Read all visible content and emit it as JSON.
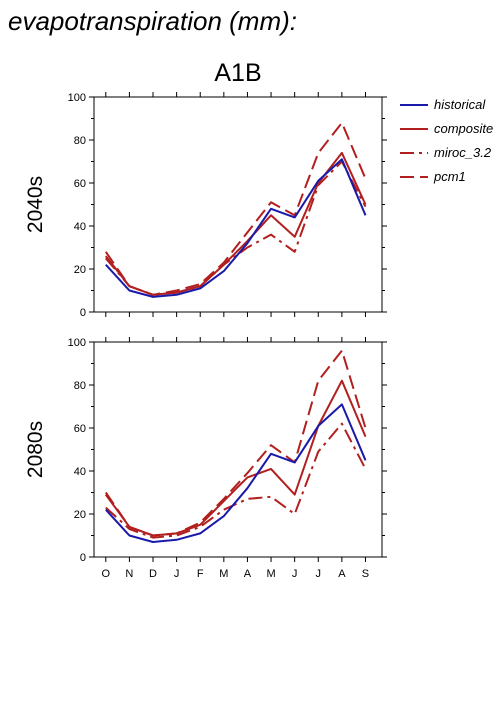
{
  "title": "evapotranspiration (mm):",
  "scenario": "A1B",
  "colors": {
    "historical": "#1a1aaa",
    "model": "#b21f1f"
  },
  "chart_data": [
    {
      "type": "line",
      "panel_label": "2040s",
      "categories": [
        "O",
        "N",
        "D",
        "J",
        "F",
        "M",
        "A",
        "M",
        "J",
        "J",
        "A",
        "S"
      ],
      "ylim": [
        0,
        100
      ],
      "yticks": [
        0,
        20,
        40,
        60,
        80,
        100
      ],
      "series": [
        {
          "name": "historical",
          "values": [
            22,
            10,
            7,
            8,
            11,
            19,
            32,
            48,
            44,
            61,
            71,
            45
          ]
        },
        {
          "name": "composite",
          "values": [
            26,
            12,
            8,
            9,
            12,
            22,
            33,
            45,
            35,
            60,
            74,
            50
          ]
        },
        {
          "name": "miroc_3.2",
          "values": [
            25,
            12,
            8,
            9,
            12,
            22,
            30,
            36,
            28,
            59,
            70,
            49
          ]
        },
        {
          "name": "pcm1",
          "values": [
            28,
            12,
            8,
            10,
            13,
            23,
            37,
            51,
            45,
            74,
            88,
            62
          ]
        }
      ]
    },
    {
      "type": "line",
      "panel_label": "2080s",
      "categories": [
        "O",
        "N",
        "D",
        "J",
        "F",
        "M",
        "A",
        "M",
        "J",
        "J",
        "A",
        "S"
      ],
      "ylim": [
        0,
        100
      ],
      "yticks": [
        0,
        20,
        40,
        60,
        80,
        100
      ],
      "series": [
        {
          "name": "historical",
          "values": [
            22,
            10,
            7,
            8,
            11,
            19,
            32,
            48,
            44,
            61,
            71,
            45
          ]
        },
        {
          "name": "composite",
          "values": [
            29,
            14,
            10,
            11,
            15,
            26,
            37,
            41,
            29,
            61,
            82,
            56
          ]
        },
        {
          "name": "miroc_3.2",
          "values": [
            23,
            13,
            9,
            10,
            14,
            22,
            27,
            28,
            20,
            49,
            62,
            41
          ]
        },
        {
          "name": "pcm1",
          "values": [
            30,
            14,
            10,
            11,
            16,
            27,
            39,
            52,
            44,
            82,
            96,
            60
          ]
        }
      ]
    }
  ],
  "legend": [
    {
      "label": "historical",
      "style": "solid",
      "color": "#1a1aaa"
    },
    {
      "label": "composite",
      "style": "solid",
      "color": "#b21f1f"
    },
    {
      "label": "miroc_3.2",
      "style": "dashdot",
      "color": "#b21f1f"
    },
    {
      "label": "pcm1",
      "style": "dashed",
      "color": "#b21f1f"
    }
  ]
}
